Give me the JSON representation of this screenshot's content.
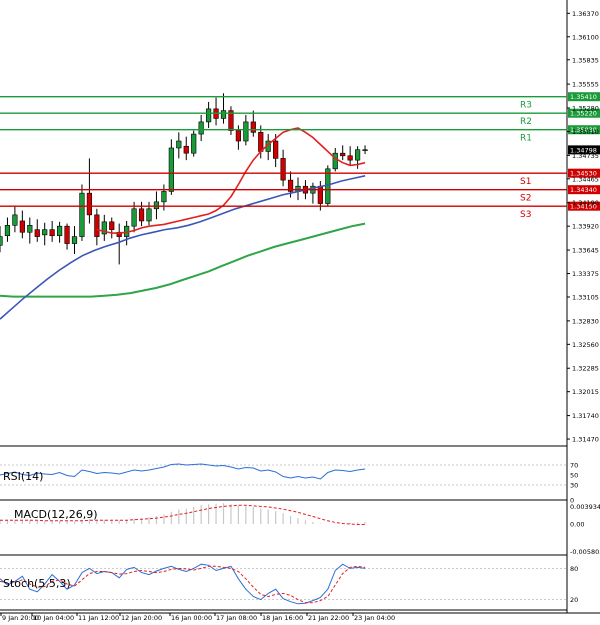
{
  "chart_data": {
    "type": "candlestick",
    "colors": {
      "bull": "#1a9a38",
      "bear": "#d00000",
      "sma_fast": "#e41f1f",
      "sma_mid": "#3a57b7",
      "sma_slow": "#2fa547",
      "resistance": "#1a9a38",
      "support": "#d00000",
      "osc": "#2b6fd6",
      "signal": "#e41f1f",
      "macd_hist": "#c8c8c8"
    },
    "price_axis": {
      "ylim": [
        1.3139,
        1.365
      ],
      "ticks": [
        "1.36370",
        "1.36100",
        "1.35835",
        "1.35555",
        "1.35280",
        "1.35010",
        "1.34735",
        "1.34465",
        "1.34190",
        "1.33920",
        "1.33645",
        "1.33375",
        "1.33105",
        "1.32830",
        "1.32560",
        "1.32285",
        "1.32015",
        "1.31740",
        "1.31470"
      ],
      "current": "1.34798"
    },
    "levels": [
      {
        "label": "R3",
        "value": 1.3541,
        "text": "1.35410",
        "kind": "resistance"
      },
      {
        "label": "R2",
        "value": 1.3522,
        "text": "1.35220",
        "kind": "resistance"
      },
      {
        "label": "R1",
        "value": 1.3503,
        "text": "1.35030",
        "kind": "resistance"
      },
      {
        "label": "S1",
        "value": 1.3453,
        "text": "1.34530",
        "kind": "support"
      },
      {
        "label": "S2",
        "value": 1.3434,
        "text": "1.34340",
        "kind": "support"
      },
      {
        "label": "S3",
        "value": 1.3415,
        "text": "1.34150",
        "kind": "support"
      }
    ],
    "x_labels": [
      "9 Jan 20:00",
      "10 Jan 04:00",
      "11 Jan 12:00",
      "12 Jan 20:00",
      "16 Jan 00:00",
      "17 Jan 08:00",
      "18 Jan 16:00",
      "21 Jan 22:00",
      "23 Jan 04:00"
    ],
    "candles": [
      [
        1.337,
        1.3392,
        1.3362,
        1.338
      ],
      [
        1.3381,
        1.3402,
        1.3374,
        1.3393
      ],
      [
        1.3393,
        1.3415,
        1.3385,
        1.3405
      ],
      [
        1.3398,
        1.341,
        1.3378,
        1.3385
      ],
      [
        1.3385,
        1.3402,
        1.3372,
        1.3393
      ],
      [
        1.3388,
        1.34,
        1.3374,
        1.338
      ],
      [
        1.3382,
        1.3396,
        1.337,
        1.3388
      ],
      [
        1.3388,
        1.3398,
        1.3374,
        1.3381
      ],
      [
        1.3381,
        1.3397,
        1.3373,
        1.3392
      ],
      [
        1.3392,
        1.3395,
        1.3365,
        1.3372
      ],
      [
        1.3372,
        1.3392,
        1.336,
        1.338
      ],
      [
        1.338,
        1.344,
        1.3375,
        1.343
      ],
      [
        1.343,
        1.347,
        1.3395,
        1.3405
      ],
      [
        1.3405,
        1.3412,
        1.337,
        1.338
      ],
      [
        1.3383,
        1.3405,
        1.3375,
        1.3397
      ],
      [
        1.3397,
        1.3402,
        1.3378,
        1.3388
      ],
      [
        1.3385,
        1.3395,
        1.3348,
        1.338
      ],
      [
        1.338,
        1.3398,
        1.337,
        1.3392
      ],
      [
        1.3392,
        1.342,
        1.3385,
        1.3412
      ],
      [
        1.3412,
        1.342,
        1.3392,
        1.3398
      ],
      [
        1.3398,
        1.342,
        1.3393,
        1.3412
      ],
      [
        1.3412,
        1.3432,
        1.34,
        1.342
      ],
      [
        1.342,
        1.344,
        1.341,
        1.3432
      ],
      [
        1.3432,
        1.3492,
        1.3428,
        1.3482
      ],
      [
        1.3482,
        1.35,
        1.347,
        1.349
      ],
      [
        1.3484,
        1.3495,
        1.3468,
        1.3476
      ],
      [
        1.3476,
        1.3502,
        1.3472,
        1.3498
      ],
      [
        1.3498,
        1.352,
        1.349,
        1.3512
      ],
      [
        1.3512,
        1.3535,
        1.3505,
        1.3527
      ],
      [
        1.3527,
        1.354,
        1.3508,
        1.3516
      ],
      [
        1.3516,
        1.3545,
        1.351,
        1.3525
      ],
      [
        1.3525,
        1.353,
        1.3497,
        1.3502
      ],
      [
        1.3502,
        1.3508,
        1.348,
        1.349
      ],
      [
        1.349,
        1.352,
        1.3485,
        1.3512
      ],
      [
        1.3512,
        1.3525,
        1.3495,
        1.35
      ],
      [
        1.35,
        1.3508,
        1.347,
        1.3478
      ],
      [
        1.3478,
        1.3498,
        1.3468,
        1.349
      ],
      [
        1.349,
        1.3498,
        1.346,
        1.347
      ],
      [
        1.347,
        1.348,
        1.3438,
        1.3445
      ],
      [
        1.3445,
        1.3455,
        1.3425,
        1.3432
      ],
      [
        1.3432,
        1.3448,
        1.3422,
        1.3438
      ],
      [
        1.3438,
        1.3445,
        1.3423,
        1.343
      ],
      [
        1.343,
        1.3442,
        1.3418,
        1.3438
      ],
      [
        1.3438,
        1.3444,
        1.341,
        1.3418
      ],
      [
        1.3418,
        1.3462,
        1.3415,
        1.3458
      ],
      [
        1.3458,
        1.3482,
        1.3455,
        1.3476
      ],
      [
        1.3476,
        1.3485,
        1.3468,
        1.3473
      ],
      [
        1.3473,
        1.3484,
        1.3462,
        1.3468
      ],
      [
        1.3468,
        1.3484,
        1.3458,
        1.348
      ],
      [
        1.348,
        1.3485,
        1.3475,
        1.348
      ]
    ],
    "sma_fast": [
      1.3388,
      1.3386,
      1.3384,
      1.3384,
      1.3385,
      1.3387,
      1.339,
      1.3392,
      1.3393,
      1.3394,
      1.3396,
      1.3398,
      1.34,
      1.3402,
      1.3404,
      1.3406,
      1.341,
      1.3416,
      1.3426,
      1.344,
      1.3455,
      1.3468,
      1.3478,
      1.3486,
      1.3493,
      1.35,
      1.3503,
      1.3505,
      1.35,
      1.3494,
      1.3486,
      1.3478,
      1.347,
      1.3465,
      1.3462,
      1.3463,
      1.3465
    ],
    "sma_fast_start": 13,
    "sma_mid": [
      1.3285,
      1.3297,
      1.3309,
      1.332,
      1.3331,
      1.3341,
      1.335,
      1.3358,
      1.3364,
      1.3369,
      1.3373,
      1.3378,
      1.3382,
      1.3385,
      1.3388,
      1.339,
      1.3393,
      1.3397,
      1.3402,
      1.3407,
      1.3412,
      1.3416,
      1.342,
      1.3424,
      1.3428,
      1.3431,
      1.3434,
      1.3437,
      1.344,
      1.3444,
      1.3447,
      1.345
    ],
    "sma_slow": [
      1.3312,
      1.3311,
      1.3311,
      1.3311,
      1.3311,
      1.3311,
      1.3311,
      1.3311,
      1.3312,
      1.3313,
      1.3315,
      1.3318,
      1.3321,
      1.3325,
      1.333,
      1.3335,
      1.334,
      1.3346,
      1.3352,
      1.3358,
      1.3363,
      1.3368,
      1.3372,
      1.3376,
      1.338,
      1.3384,
      1.3388,
      1.3392,
      1.3395
    ],
    "rsi": {
      "label": "RSI(14)",
      "ticks": [
        "70",
        "50",
        "30",
        "0"
      ],
      "values": [
        50,
        53,
        56,
        51,
        49,
        54,
        52,
        51,
        55,
        49,
        47,
        60,
        57,
        53,
        55,
        54,
        52,
        56,
        60,
        58,
        60,
        63,
        66,
        71,
        72,
        70,
        71,
        72,
        70,
        68,
        69,
        66,
        62,
        65,
        64,
        58,
        60,
        56,
        47,
        44,
        47,
        44,
        46,
        42,
        55,
        60,
        59,
        57,
        60,
        62
      ]
    },
    "macd": {
      "label": "MACD(12,26,9)",
      "ticks": [
        "0.003934",
        "0.00",
        "-0.005803"
      ],
      "hist": [
        0.0009,
        0.0008,
        0.0008,
        0.0007,
        0.0007,
        0.0006,
        0.0006,
        0.0006,
        0.0006,
        0.0005,
        0.0005,
        0.0008,
        0.0009,
        0.0008,
        0.0008,
        0.0008,
        0.0007,
        0.0008,
        0.001,
        0.0011,
        0.0013,
        0.0015,
        0.0018,
        0.0023,
        0.0027,
        0.0029,
        0.0032,
        0.0035,
        0.0037,
        0.0038,
        0.0039,
        0.0037,
        0.0035,
        0.0034,
        0.0032,
        0.0029,
        0.0027,
        0.0024,
        0.002,
        0.0015,
        0.0011,
        0.0007,
        0.0004,
        0.0001,
        0.0,
        0.0001,
        0.0002,
        0.0002,
        0.0003,
        0.0004
      ],
      "signal": [
        0.0007,
        0.0007,
        0.0007,
        0.0007,
        0.0007,
        0.0007,
        0.0006,
        0.0006,
        0.0006,
        0.0006,
        0.0006,
        0.0006,
        0.0007,
        0.0007,
        0.0007,
        0.0007,
        0.0007,
        0.0007,
        0.0008,
        0.0009,
        0.001,
        0.0011,
        0.0013,
        0.0015,
        0.0018,
        0.002,
        0.0023,
        0.0026,
        0.0029,
        0.0031,
        0.0033,
        0.0034,
        0.0035,
        0.0035,
        0.0034,
        0.0033,
        0.0032,
        0.003,
        0.0028,
        0.0025,
        0.0022,
        0.0018,
        0.0014,
        0.001,
        0.0006,
        0.0003,
        0.0001,
        0.0,
        -0.0001,
        -0.0001
      ]
    },
    "stoch": {
      "label": "Stoch(5,5,3)",
      "ticks": [
        "80",
        "20"
      ],
      "k": [
        60,
        48,
        55,
        65,
        40,
        35,
        50,
        68,
        55,
        40,
        48,
        72,
        80,
        70,
        74,
        72,
        62,
        78,
        82,
        72,
        68,
        75,
        80,
        84,
        78,
        74,
        80,
        88,
        86,
        76,
        80,
        84,
        60,
        40,
        26,
        20,
        32,
        40,
        22,
        16,
        12,
        13,
        18,
        24,
        40,
        76,
        88,
        80,
        82,
        80
      ],
      "d": [
        55,
        52,
        53,
        58,
        50,
        44,
        45,
        55,
        58,
        50,
        46,
        58,
        70,
        74,
        74,
        72,
        69,
        70,
        74,
        76,
        74,
        72,
        74,
        78,
        80,
        79,
        77,
        80,
        84,
        84,
        82,
        80,
        74,
        60,
        44,
        30,
        26,
        30,
        32,
        28,
        20,
        14,
        14,
        18,
        26,
        48,
        70,
        82,
        84,
        82
      ]
    }
  }
}
